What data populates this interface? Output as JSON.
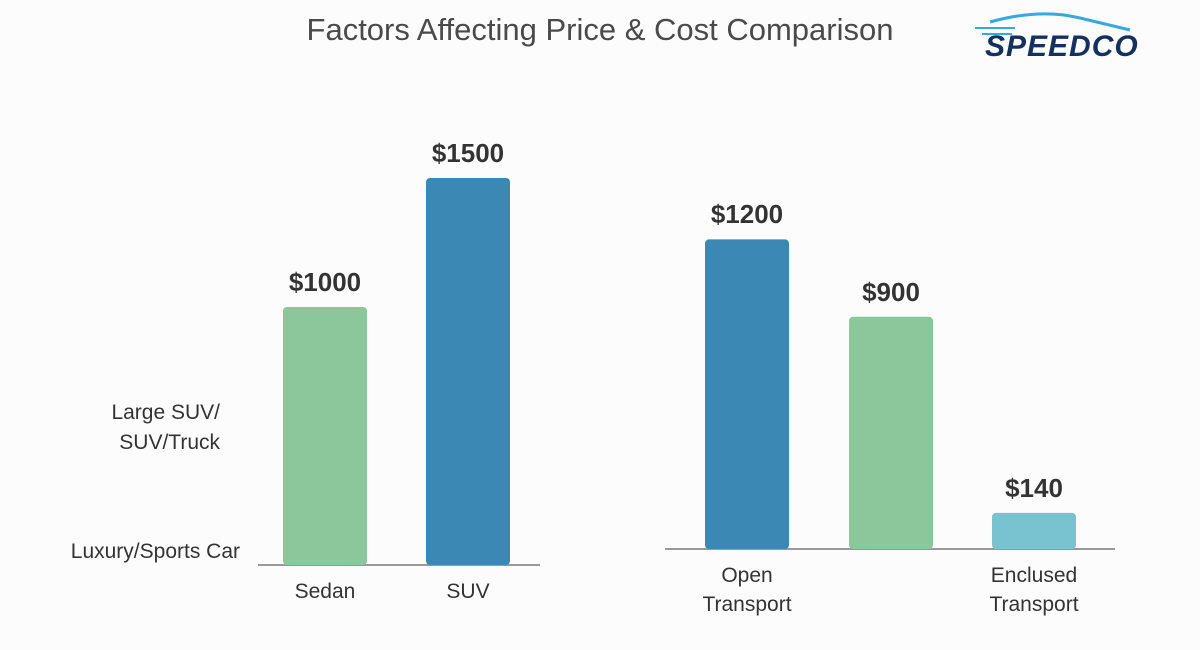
{
  "title": "Factors Affecting Price & Cost Comparison",
  "logo": "SPEEDCO",
  "chart_data": [
    {
      "type": "bar",
      "categories": [
        "Sedan",
        "SUV"
      ],
      "values": [
        1000,
        1500
      ],
      "value_labels": [
        "$1000",
        "$1500"
      ],
      "colors": [
        "#8cc79b",
        "#3a88b3"
      ],
      "y_labels": [
        "Large SUV/ SUV/Truck",
        "Luxury/Sports Car"
      ]
    },
    {
      "type": "bar",
      "categories": [
        "Open Transport",
        null,
        "Enclused Transport"
      ],
      "values": [
        1200,
        900,
        140
      ],
      "value_labels": [
        "$1200",
        "$900",
        "$140"
      ],
      "colors": [
        "#3a88b3",
        "#8cc79b",
        "#79c2d0"
      ]
    }
  ]
}
